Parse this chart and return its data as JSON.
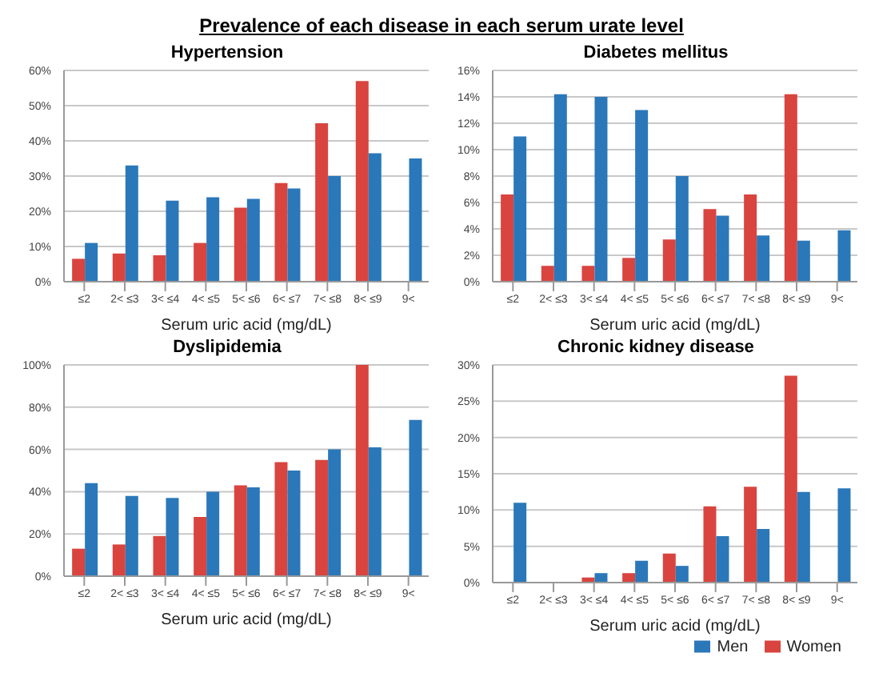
{
  "chart_data": [
    {
      "type": "bar",
      "title": "Hypertension",
      "xlabel": "Serum uric acid (mg/dL)",
      "annotations": [
        "Prevalence of each disease in each serum urate level"
      ],
      "categories": [
        "≤2",
        "2< ≤3",
        "3< ≤4",
        "4< ≤5",
        "5< ≤6",
        "6< ≤7",
        "7< ≤8",
        "8< ≤9",
        "9<"
      ],
      "series": [
        {
          "color": "#d9443f",
          "values": [
            6.5,
            8,
            7.5,
            11,
            21,
            28,
            45,
            57,
            null
          ]
        },
        {
          "color": "#2a78b9",
          "values": [
            11,
            33,
            23,
            24,
            23.5,
            26.5,
            30,
            36.5,
            35
          ]
        }
      ],
      "ylim": [
        0,
        60
      ],
      "yticks": [
        {
          "value": 0,
          "label": "0%"
        },
        {
          "value": 10,
          "label": "10%"
        },
        {
          "value": 20,
          "label": "20%"
        },
        {
          "value": 30,
          "label": "30%"
        },
        {
          "value": 40,
          "label": "40%"
        },
        {
          "value": 50,
          "label": "50%"
        },
        {
          "value": 60,
          "label": "60%"
        }
      ],
      "grid": "y",
      "legend": false
    },
    {
      "type": "bar",
      "title": "Diabetes mellitus",
      "xlabel": "Serum uric acid (mg/dL)",
      "categories": [
        "≤2",
        "2< ≤3",
        "3< ≤4",
        "4< ≤5",
        "5< ≤6",
        "6< ≤7",
        "7< ≤8",
        "8< ≤9",
        "9<"
      ],
      "series": [
        {
          "color": "#d9443f",
          "values": [
            6.6,
            1.2,
            1.2,
            1.8,
            3.2,
            5.5,
            6.6,
            14.2,
            null
          ]
        },
        {
          "color": "#2a78b9",
          "values": [
            11,
            14.2,
            14,
            13,
            8,
            5,
            3.5,
            3.1,
            3.9
          ]
        }
      ],
      "ylim": [
        0,
        16
      ],
      "yticks": [
        {
          "value": 0,
          "label": "0%"
        },
        {
          "value": 2,
          "label": "2%"
        },
        {
          "value": 4,
          "label": "4%"
        },
        {
          "value": 6,
          "label": "6%"
        },
        {
          "value": 8,
          "label": "8%"
        },
        {
          "value": 10,
          "label": "10%"
        },
        {
          "value": 12,
          "label": "12%"
        },
        {
          "value": 14,
          "label": "14%"
        },
        {
          "value": 16,
          "label": "16%"
        }
      ],
      "grid": "y",
      "legend": false
    },
    {
      "type": "bar",
      "title": "Dyslipidemia",
      "xlabel": "Serum uric acid (mg/dL)",
      "categories": [
        "≤2",
        "2< ≤3",
        "3< ≤4",
        "4< ≤5",
        "5< ≤6",
        "6< ≤7",
        "7< ≤8",
        "8< ≤9",
        "9<"
      ],
      "series": [
        {
          "color": "#d9443f",
          "values": [
            13,
            15,
            19,
            28,
            43,
            54,
            55,
            100,
            null
          ]
        },
        {
          "color": "#2a78b9",
          "values": [
            44,
            38,
            37,
            40,
            42,
            50,
            60,
            61,
            74
          ]
        }
      ],
      "ylim": [
        0,
        100
      ],
      "yticks": [
        {
          "value": 0,
          "label": "0%"
        },
        {
          "value": 20,
          "label": "20%"
        },
        {
          "value": 40,
          "label": "40%"
        },
        {
          "value": 60,
          "label": "60%"
        },
        {
          "value": 80,
          "label": "80%"
        },
        {
          "value": 100,
          "label": "100%"
        }
      ],
      "grid": "y",
      "legend": false
    },
    {
      "type": "bar",
      "title": "Chronic kidney disease",
      "xlabel": "Serum uric acid (mg/dL)",
      "categories": [
        "≤2",
        "2< ≤3",
        "3< ≤4",
        "4< ≤5",
        "5< ≤6",
        "6< ≤7",
        "7< ≤8",
        "8< ≤9",
        "9<"
      ],
      "series": [
        {
          "name": "Women",
          "color": "#d9443f",
          "values": [
            null,
            null,
            0.7,
            1.3,
            4,
            10.5,
            13.2,
            28.5,
            null
          ]
        },
        {
          "name": "Men",
          "color": "#2a78b9",
          "values": [
            11,
            null,
            1.3,
            3,
            2.3,
            6.4,
            7.4,
            12.5,
            13
          ]
        }
      ],
      "ylim": [
        0,
        30
      ],
      "yticks": [
        {
          "value": 0,
          "label": "0%"
        },
        {
          "value": 5,
          "label": "5%"
        },
        {
          "value": 10,
          "label": "10%"
        },
        {
          "value": 15,
          "label": "15%"
        },
        {
          "value": 20,
          "label": "20%"
        },
        {
          "value": 25,
          "label": "25%"
        },
        {
          "value": 30,
          "label": "30%"
        }
      ],
      "grid": "y",
      "legend": "bottom"
    }
  ]
}
